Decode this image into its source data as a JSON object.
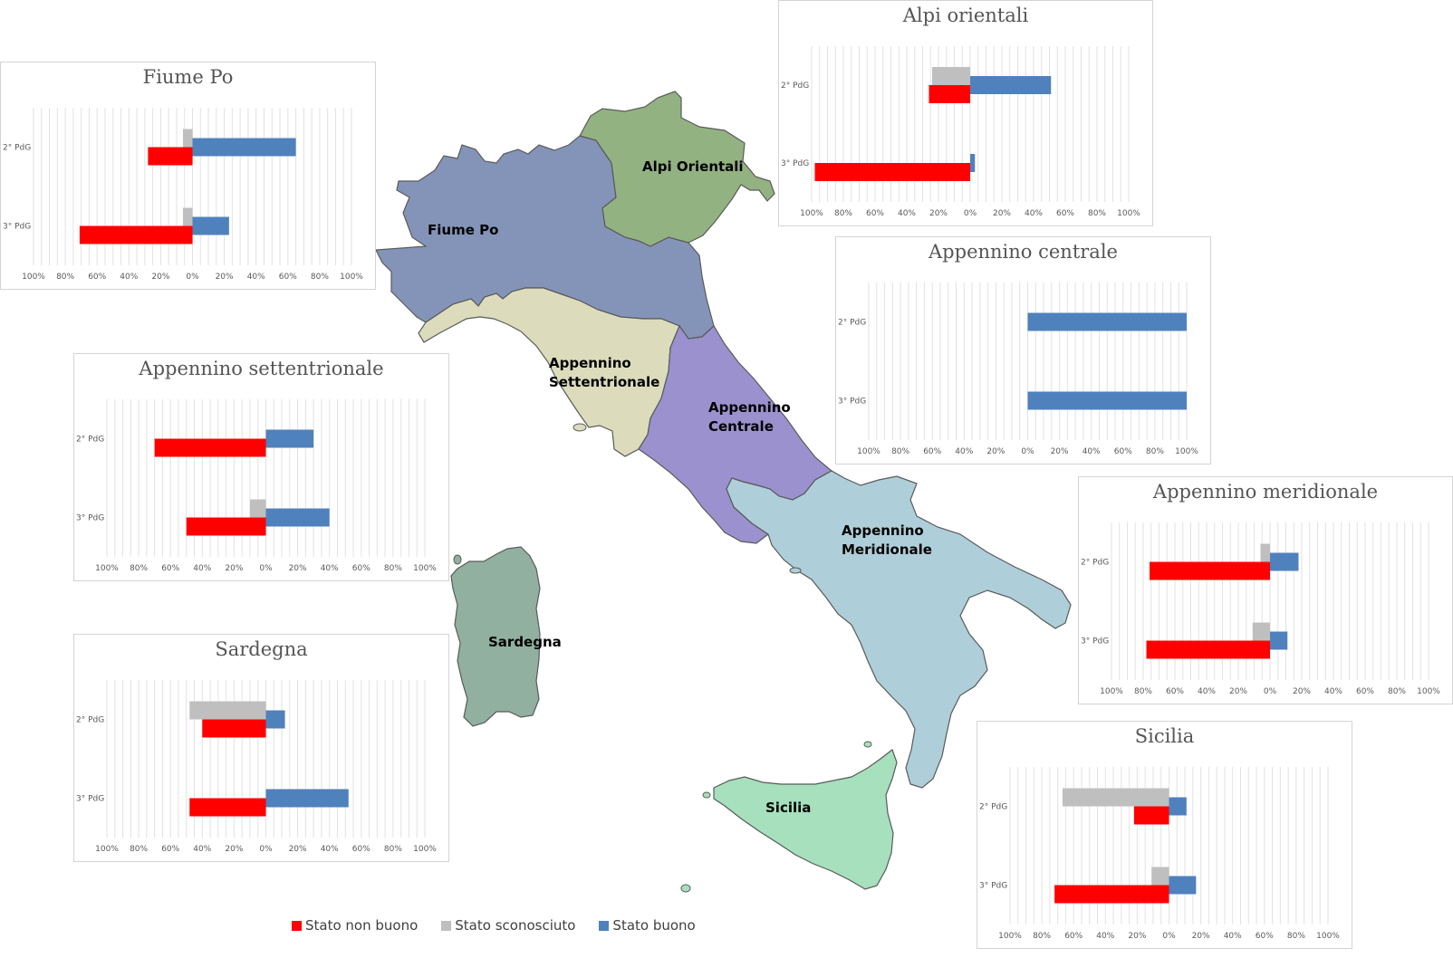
{
  "colors": {
    "non_buono": "#ff0000",
    "sconosciuto": "#bfbfbf",
    "buono": "#4f81bd",
    "fiume_po": "#8494b8",
    "alpi_orientali": "#93b282",
    "appennino_settentrionale": "#dcdcbd",
    "appennino_centrale": "#9b91ce",
    "appennino_meridionale": "#aecfd9",
    "sardegna": "#91b0a0",
    "sicilia": "#a6e0bc"
  },
  "regions": [
    {
      "id": "alpi-orientali",
      "label": "Alpi Orientali"
    },
    {
      "id": "fiume-po",
      "label": "Fiume Po"
    },
    {
      "id": "appennino-settentrionale",
      "label": "Appennino\nSettentrionale"
    },
    {
      "id": "appennino-centrale",
      "label": "Appennino\nCentrale"
    },
    {
      "id": "appennino-meridionale",
      "label": "Appennino\nMeridionale"
    },
    {
      "id": "sardegna",
      "label": "Sardegna"
    },
    {
      "id": "sicilia",
      "label": "Sicilia"
    }
  ],
  "legend": {
    "non_buono": "Stato non buono",
    "sconosciuto": "Stato sconosciuto",
    "buono": "Stato buono"
  },
  "chart_data": [
    {
      "type": "bar",
      "title": "Fiume Po",
      "categories": [
        "2° PdG",
        "3° PdG"
      ],
      "x_ticks": [
        "100%",
        "80%",
        "60%",
        "40%",
        "20%",
        "0%",
        "20%",
        "40%",
        "60%",
        "80%",
        "100%"
      ],
      "xlim": [
        -100,
        100
      ],
      "series": [
        {
          "name": "Stato non buono",
          "values": [
            28,
            71
          ]
        },
        {
          "name": "Stato sconosciuto",
          "values": [
            6,
            6
          ]
        },
        {
          "name": "Stato buono",
          "values": [
            65,
            23
          ]
        }
      ]
    },
    {
      "type": "bar",
      "title": "Alpi orientali",
      "categories": [
        "2° PdG",
        "3° PdG"
      ],
      "x_ticks": [
        "100%",
        "80%",
        "60%",
        "40%",
        "20%",
        "0%",
        "20%",
        "40%",
        "60%",
        "80%",
        "100%"
      ],
      "xlim": [
        -100,
        100
      ],
      "series": [
        {
          "name": "Stato non buono",
          "values": [
            26,
            98
          ]
        },
        {
          "name": "Stato sconosciuto",
          "values": [
            24,
            0
          ]
        },
        {
          "name": "Stato buono",
          "values": [
            51,
            3
          ]
        }
      ]
    },
    {
      "type": "bar",
      "title": "Appennino centrale",
      "categories": [
        "2° PdG",
        "3° PdG"
      ],
      "x_ticks": [
        "100%",
        "80%",
        "60%",
        "40%",
        "20%",
        "0%",
        "20%",
        "40%",
        "60%",
        "80%",
        "100%"
      ],
      "xlim": [
        -100,
        100
      ],
      "series": [
        {
          "name": "Stato non buono",
          "values": [
            0,
            0
          ]
        },
        {
          "name": "Stato sconosciuto",
          "values": [
            0,
            0
          ]
        },
        {
          "name": "Stato buono",
          "values": [
            100,
            100
          ]
        }
      ]
    },
    {
      "type": "bar",
      "title": "Appennino settentrionale",
      "categories": [
        "2° PdG",
        "3° PdG"
      ],
      "x_ticks": [
        "100%",
        "80%",
        "60%",
        "40%",
        "20%",
        "0%",
        "20%",
        "40%",
        "60%",
        "80%",
        "100%"
      ],
      "xlim": [
        -100,
        100
      ],
      "series": [
        {
          "name": "Stato non buono",
          "values": [
            70,
            50
          ]
        },
        {
          "name": "Stato sconosciuto",
          "values": [
            0,
            10
          ]
        },
        {
          "name": "Stato buono",
          "values": [
            30,
            40
          ]
        }
      ]
    },
    {
      "type": "bar",
      "title": "Appennino meridionale",
      "categories": [
        "2° PdG",
        "3° PdG"
      ],
      "x_ticks": [
        "100%",
        "80%",
        "60%",
        "40%",
        "20%",
        "0%",
        "20%",
        "40%",
        "60%",
        "80%",
        "100%"
      ],
      "xlim": [
        -100,
        100
      ],
      "series": [
        {
          "name": "Stato non buono",
          "values": [
            76,
            78
          ]
        },
        {
          "name": "Stato sconosciuto",
          "values": [
            6,
            11
          ]
        },
        {
          "name": "Stato buono",
          "values": [
            18,
            11
          ]
        }
      ]
    },
    {
      "type": "bar",
      "title": "Sardegna",
      "categories": [
        "2° PdG",
        "3° PdG"
      ],
      "x_ticks": [
        "100%",
        "80%",
        "60%",
        "40%",
        "20%",
        "0%",
        "20%",
        "40%",
        "60%",
        "80%",
        "100%"
      ],
      "xlim": [
        -100,
        100
      ],
      "series": [
        {
          "name": "Stato non buono",
          "values": [
            40,
            48
          ]
        },
        {
          "name": "Stato sconosciuto",
          "values": [
            48,
            0
          ]
        },
        {
          "name": "Stato buono",
          "values": [
            12,
            52
          ]
        }
      ]
    },
    {
      "type": "bar",
      "title": "Sicilia",
      "categories": [
        "2° PdG",
        "3° PdG"
      ],
      "x_ticks": [
        "100%",
        "80%",
        "60%",
        "40%",
        "20%",
        "0%",
        "20%",
        "40%",
        "60%",
        "80%",
        "100%"
      ],
      "xlim": [
        -100,
        100
      ],
      "series": [
        {
          "name": "Stato non buono",
          "values": [
            22,
            72
          ]
        },
        {
          "name": "Stato sconosciuto",
          "values": [
            67,
            11
          ]
        },
        {
          "name": "Stato buono",
          "values": [
            11,
            17
          ]
        }
      ]
    }
  ]
}
